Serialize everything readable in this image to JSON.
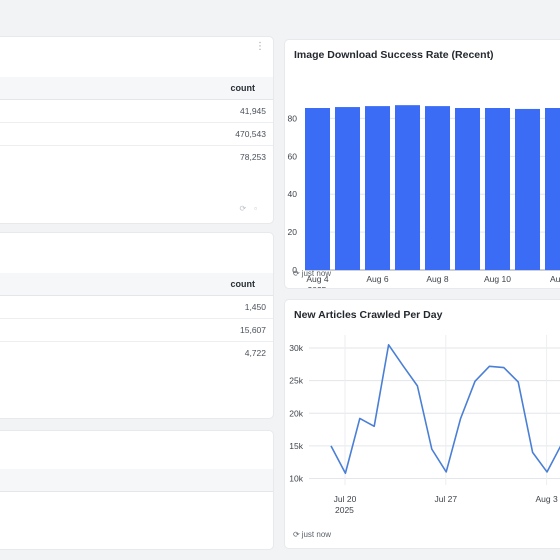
{
  "table1": {
    "column_header": "count",
    "rows": [
      {
        "count": "41,945"
      },
      {
        "count": "470,543"
      },
      {
        "count": "78,253"
      }
    ]
  },
  "table2": {
    "column_header": "count",
    "rows": [
      {
        "count": "1,450"
      },
      {
        "count": "15,607"
      },
      {
        "count": "4,722"
      }
    ]
  },
  "chart1": {
    "title": "Image Download Success Rate (Recent)",
    "footer": "just now",
    "accent": "#3b6cf6"
  },
  "chart2": {
    "title": "New Articles Crawled Per Day",
    "footer": "just now",
    "accent": "#4a7fd6"
  },
  "icons": {
    "refresh": "refresh-icon",
    "kebab": "kebab-menu-icon"
  },
  "chart_data": [
    {
      "type": "bar",
      "title": "Image Download Success Rate (Recent)",
      "x_ticks": [
        "Aug 4",
        "Aug 6",
        "Aug 8",
        "Aug 10",
        "Aug"
      ],
      "x_tick_sub": [
        "2025",
        "",
        "",
        "",
        ""
      ],
      "y_ticks": [
        0,
        20,
        40,
        60,
        80
      ],
      "ylim": [
        0,
        95
      ],
      "values": [
        85.5,
        86,
        86.5,
        87,
        86.5,
        85.5,
        85.5,
        85,
        85.5,
        86
      ],
      "grid": true
    },
    {
      "type": "line",
      "title": "New Articles Crawled Per Day",
      "x_ticks": [
        "Jul 20",
        "Jul 27",
        "Aug 3"
      ],
      "x_tick_sub": [
        "2025",
        "",
        ""
      ],
      "y_ticks": [
        "10k",
        "15k",
        "20k",
        "25k",
        "30k"
      ],
      "y_tick_values": [
        10000,
        15000,
        20000,
        25000,
        30000
      ],
      "ylim": [
        9000,
        32000
      ],
      "values": [
        15000,
        10800,
        19200,
        18000,
        30500,
        27300,
        24200,
        14500,
        11000,
        19200,
        24900,
        27200,
        27000,
        24800,
        14000,
        11000,
        15200
      ],
      "grid": true
    }
  ]
}
